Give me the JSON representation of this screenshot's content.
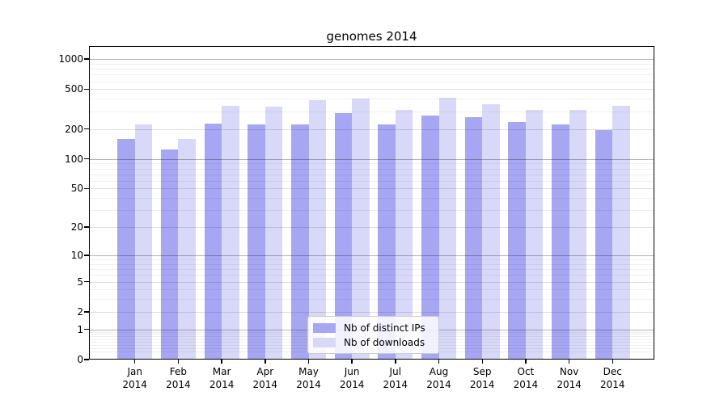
{
  "title": "genomes 2014",
  "chart_data": {
    "type": "bar",
    "title": "genomes 2014",
    "xlabel": "",
    "ylabel": "",
    "y_scale": "log10(1+x)",
    "y_ticks": [
      0,
      1,
      2,
      5,
      10,
      20,
      50,
      100,
      200,
      500,
      1000
    ],
    "ylim": [
      0,
      1350
    ],
    "grid": "on",
    "legend_position": "lower center",
    "categories": [
      "Jan 2014",
      "Feb 2014",
      "Mar 2014",
      "Apr 2014",
      "May 2014",
      "Jun 2014",
      "Jul 2014",
      "Aug 2014",
      "Sep 2014",
      "Oct 2014",
      "Nov 2014",
      "Dec 2014"
    ],
    "series": [
      {
        "name": "Nb of distinct IPs",
        "color": "#a6a6f3",
        "values": [
          158,
          125,
          225,
          220,
          220,
          290,
          222,
          272,
          264,
          233,
          223,
          194
        ]
      },
      {
        "name": "Nb of downloads",
        "color": "#d8d8f8",
        "values": [
          220,
          160,
          343,
          334,
          389,
          401,
          310,
          414,
          354,
          310,
          312,
          339
        ]
      }
    ]
  }
}
